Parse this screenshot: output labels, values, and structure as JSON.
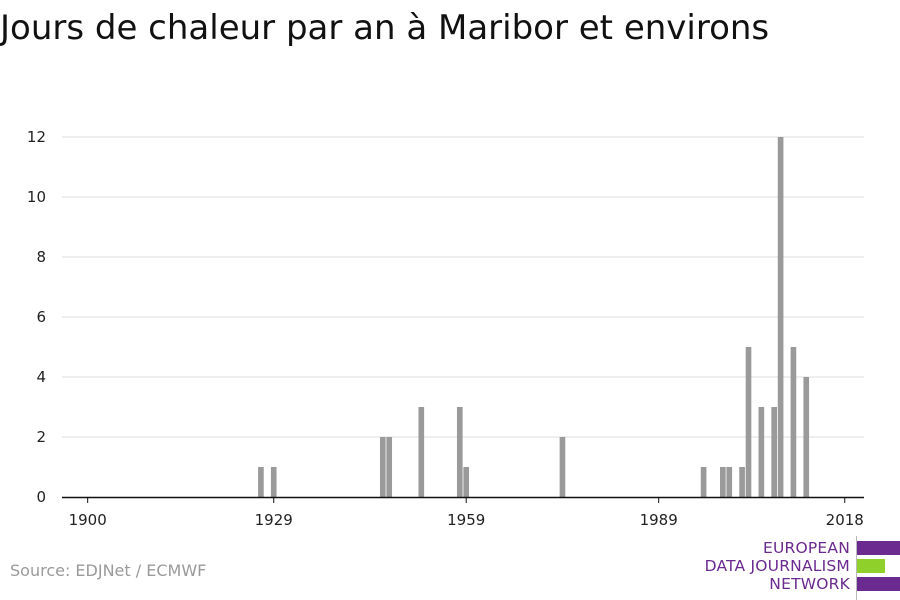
{
  "title": "Jours de chaleur par an à Maribor et environs",
  "source": "Source: EDJNet / ECMWF",
  "logo": {
    "lines": [
      "EUROPEAN",
      "DATA JOURNALISM",
      "NETWORK"
    ],
    "colors": {
      "purple": "#6b2a8f",
      "green": "#8fd12a"
    }
  },
  "chart_data": {
    "type": "bar",
    "title": "Jours de chaleur par an à Maribor et environs",
    "xlabel": "",
    "ylabel": "",
    "xlim": [
      1896,
      2021
    ],
    "ylim": [
      0,
      12.5
    ],
    "x_ticks": [
      1900,
      1929,
      1959,
      1989,
      2018
    ],
    "y_ticks": [
      0,
      2,
      4,
      6,
      8,
      10,
      12
    ],
    "grid": true,
    "bar_color": "#9a9a9a",
    "x": [
      1927,
      1929,
      1946,
      1947,
      1952,
      1958,
      1959,
      1974,
      1996,
      1999,
      2000,
      2002,
      2003,
      2005,
      2007,
      2008,
      2009,
      2010,
      2011,
      2012,
      2013,
      2014,
      2015,
      2016,
      2017,
      2018
    ],
    "values": [
      1,
      1,
      2,
      2,
      3,
      3,
      1,
      2,
      1,
      1,
      1,
      1,
      5,
      3,
      3,
      12,
      0,
      5,
      0,
      4,
      0,
      0,
      0,
      0,
      0,
      0
    ]
  }
}
